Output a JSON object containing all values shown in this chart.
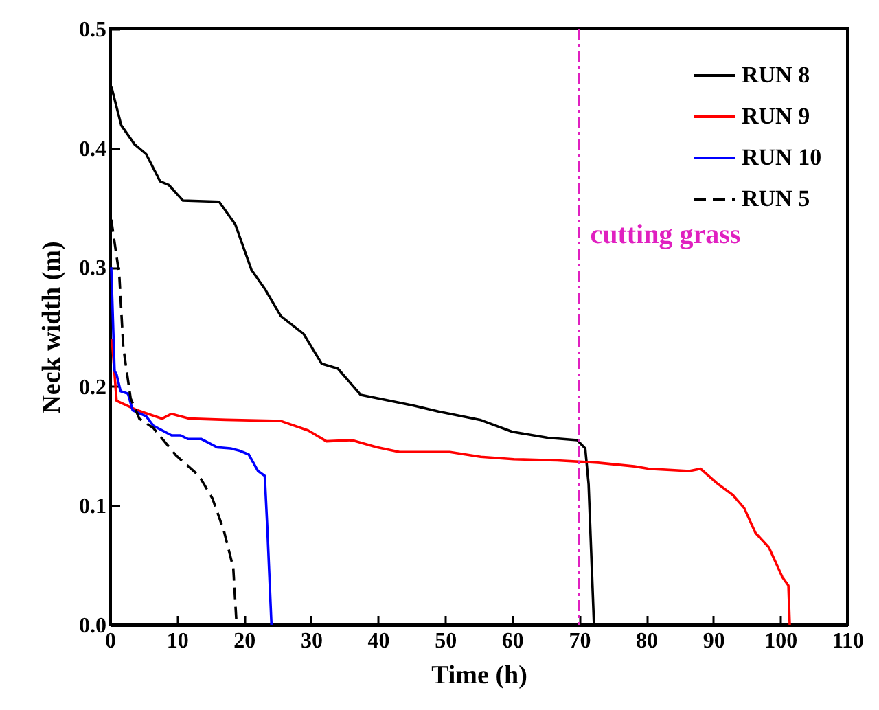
{
  "chart_data": {
    "type": "line",
    "xlabel": "Time (h)",
    "ylabel": "Neck width (m)",
    "xlim": [
      0,
      110
    ],
    "xticks": [
      0,
      10,
      20,
      30,
      40,
      50,
      60,
      70,
      80,
      90,
      100,
      110
    ],
    "ylim": [
      0,
      0.5
    ],
    "yticks": [
      {
        "value": 0,
        "label": "0.0"
      },
      0.1,
      0.2,
      0.3,
      0.4,
      0.5
    ],
    "grid": false,
    "legend": "top right",
    "series": [
      {
        "name": "RUN 8",
        "color": "#000000",
        "line_style": "solid",
        "x": [
          0.2,
          1.7,
          3.7,
          5.4,
          7.5,
          8.8,
          10.9,
          16.3,
          18.7,
          21.1,
          23.1,
          25.5,
          28.9,
          31.6,
          34.0,
          37.4,
          45.2,
          49.0,
          55.2,
          60.0,
          65.3,
          69.7,
          70.9,
          71.4,
          72.2
        ],
        "values": [
          0.452,
          0.419,
          0.403,
          0.395,
          0.372,
          0.369,
          0.356,
          0.355,
          0.336,
          0.298,
          0.282,
          0.259,
          0.244,
          0.219,
          0.215,
          0.193,
          0.184,
          0.179,
          0.172,
          0.162,
          0.157,
          0.155,
          0.148,
          0.118,
          0.0
        ]
      },
      {
        "name": "RUN 9",
        "color": "#ff0000",
        "line_style": "solid",
        "x": [
          0.3,
          1.0,
          4.1,
          7.8,
          9.2,
          11.9,
          17.3,
          25.5,
          29.6,
          32.3,
          36.1,
          39.8,
          43.2,
          50.7,
          55.3,
          60.2,
          66.7,
          72.8,
          78.2,
          80.3,
          86.4,
          88.1,
          90.5,
          92.9,
          94.6,
          96.3,
          98.3,
          100.3,
          101.2,
          101.4
        ],
        "values": [
          0.24,
          0.188,
          0.18,
          0.173,
          0.177,
          0.173,
          0.172,
          0.171,
          0.163,
          0.154,
          0.155,
          0.149,
          0.145,
          0.145,
          0.141,
          0.139,
          0.138,
          0.136,
          0.133,
          0.131,
          0.129,
          0.131,
          0.119,
          0.109,
          0.098,
          0.077,
          0.065,
          0.04,
          0.033,
          0.0
        ]
      },
      {
        "name": "RUN 10",
        "color": "#0000ff",
        "line_style": "solid",
        "x": [
          0.2,
          0.7,
          1.0,
          1.6,
          2.7,
          3.4,
          5.4,
          6.5,
          9.2,
          10.5,
          11.6,
          13.6,
          16.0,
          18.0,
          19.4,
          20.7,
          22.1,
          23.1,
          23.5,
          24.1
        ],
        "values": [
          0.3,
          0.213,
          0.21,
          0.196,
          0.194,
          0.18,
          0.175,
          0.167,
          0.159,
          0.159,
          0.156,
          0.156,
          0.149,
          0.148,
          0.146,
          0.143,
          0.129,
          0.125,
          0.079,
          0.0
        ]
      },
      {
        "name": "RUN 5",
        "color": "#000000",
        "line_style": "dashed",
        "x": [
          0.2,
          1.4,
          2.0,
          2.4,
          3.1,
          4.4,
          6.5,
          9.9,
          13.3,
          15.3,
          17.0,
          18.4,
          18.9
        ],
        "values": [
          0.34,
          0.294,
          0.233,
          0.217,
          0.19,
          0.173,
          0.165,
          0.142,
          0.125,
          0.106,
          0.079,
          0.048,
          0.0
        ]
      }
    ],
    "ref_lines": [
      {
        "axis": "x",
        "value": 70,
        "label": "cutting grass",
        "color": "#e020c0",
        "line_style": "dashdot"
      }
    ]
  }
}
